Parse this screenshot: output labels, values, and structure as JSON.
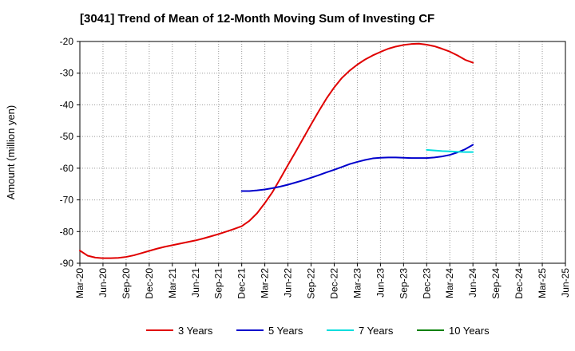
{
  "chart_data": {
    "type": "line",
    "title": "[3041]  Trend of Mean of 12-Month Moving Sum of Investing CF",
    "ylabel": "Amount (million yen)",
    "xlabel": "",
    "ylim": [
      -90,
      -20
    ],
    "yticks": [
      -20,
      -30,
      -40,
      -50,
      -60,
      -70,
      -80,
      -90
    ],
    "categories": [
      "Mar-20",
      "Jun-20",
      "Sep-20",
      "Dec-20",
      "Mar-21",
      "Jun-21",
      "Sep-21",
      "Dec-21",
      "Mar-22",
      "Jun-22",
      "Sep-22",
      "Dec-22",
      "Mar-23",
      "Jun-23",
      "Sep-23",
      "Dec-23",
      "Mar-24",
      "Jun-24",
      "Sep-24",
      "Dec-24",
      "Mar-25",
      "Jun-25"
    ],
    "grid": true,
    "legend_position": "bottom",
    "series": [
      {
        "name": "3 Years",
        "color": "#e00000",
        "x": [
          "Mar-20",
          "Apr-20",
          "May-20",
          "Jun-20",
          "Jul-20",
          "Aug-20",
          "Sep-20",
          "Oct-20",
          "Nov-20",
          "Dec-20",
          "Jan-21",
          "Feb-21",
          "Mar-21",
          "Apr-21",
          "May-21",
          "Jun-21",
          "Jul-21",
          "Aug-21",
          "Sep-21",
          "Oct-21",
          "Nov-21",
          "Dec-21",
          "Jan-22",
          "Feb-22",
          "Mar-22",
          "Apr-22",
          "May-22",
          "Jun-22",
          "Jul-22",
          "Aug-22",
          "Sep-22",
          "Oct-22",
          "Nov-22",
          "Dec-22",
          "Jan-23",
          "Feb-23",
          "Mar-23",
          "Apr-23",
          "May-23",
          "Jun-23",
          "Jul-23",
          "Aug-23",
          "Sep-23",
          "Oct-23",
          "Nov-23",
          "Dec-23",
          "Jan-24",
          "Feb-24",
          "Mar-24",
          "Apr-24",
          "May-24",
          "Jun-24"
        ],
        "values": [
          -86.0,
          -87.6,
          -88.2,
          -88.4,
          -88.4,
          -88.3,
          -88.0,
          -87.5,
          -86.8,
          -86.1,
          -85.4,
          -84.8,
          -84.3,
          -83.8,
          -83.3,
          -82.8,
          -82.2,
          -81.5,
          -80.8,
          -80.0,
          -79.2,
          -78.3,
          -76.6,
          -74.2,
          -71.0,
          -67.5,
          -63.3,
          -59.0,
          -54.8,
          -50.5,
          -46.2,
          -42.0,
          -38.0,
          -34.5,
          -31.5,
          -29.2,
          -27.3,
          -25.7,
          -24.4,
          -23.3,
          -22.3,
          -21.6,
          -21.1,
          -20.8,
          -20.7,
          -21.0,
          -21.5,
          -22.3,
          -23.2,
          -24.4,
          -25.8,
          -26.7
        ]
      },
      {
        "name": "5 Years",
        "color": "#0000cc",
        "x": [
          "Dec-21",
          "Jan-22",
          "Feb-22",
          "Mar-22",
          "Apr-22",
          "May-22",
          "Jun-22",
          "Jul-22",
          "Aug-22",
          "Sep-22",
          "Oct-22",
          "Nov-22",
          "Dec-22",
          "Jan-23",
          "Feb-23",
          "Mar-23",
          "Apr-23",
          "May-23",
          "Jun-23",
          "Jul-23",
          "Aug-23",
          "Sep-23",
          "Oct-23",
          "Nov-23",
          "Dec-23",
          "Jan-24",
          "Feb-24",
          "Mar-24",
          "Apr-24",
          "May-24",
          "Jun-24"
        ],
        "values": [
          -67.2,
          -67.2,
          -67.0,
          -66.7,
          -66.3,
          -65.8,
          -65.2,
          -64.5,
          -63.8,
          -63.0,
          -62.2,
          -61.3,
          -60.5,
          -59.6,
          -58.7,
          -58.0,
          -57.4,
          -56.9,
          -56.7,
          -56.6,
          -56.6,
          -56.7,
          -56.8,
          -56.8,
          -56.8,
          -56.6,
          -56.3,
          -55.8,
          -55.0,
          -54.0,
          -52.6
        ]
      },
      {
        "name": "7 Years",
        "color": "#00dddd",
        "x": [
          "Dec-23",
          "Jan-24",
          "Feb-24",
          "Mar-24",
          "Apr-24",
          "May-24",
          "Jun-24"
        ],
        "values": [
          -54.2,
          -54.4,
          -54.6,
          -54.7,
          -54.8,
          -54.9,
          -54.9
        ]
      },
      {
        "name": "10 Years",
        "color": "#008000",
        "x": [],
        "values": []
      }
    ]
  }
}
